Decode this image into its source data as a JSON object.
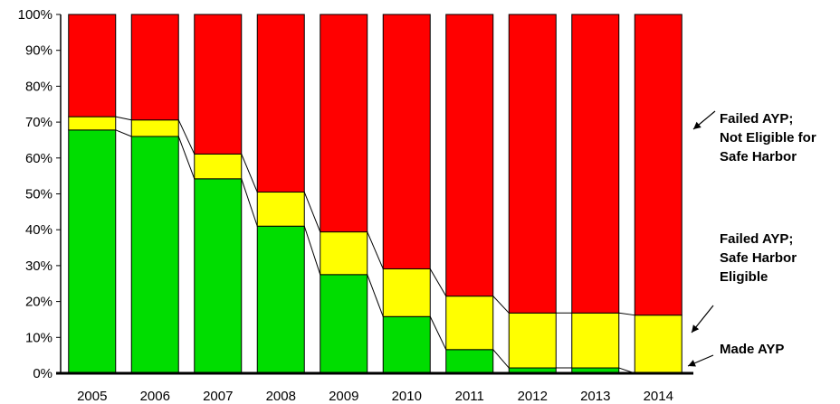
{
  "chart_data": {
    "type": "bar",
    "stacked": true,
    "percent_scale": true,
    "categories": [
      "2005",
      "2006",
      "2007",
      "2008",
      "2009",
      "2010",
      "2011",
      "2012",
      "2013",
      "2014"
    ],
    "series": [
      {
        "name": "Made AYP",
        "color": "#00dd00",
        "values": [
          67.8,
          66.0,
          54.2,
          41.0,
          27.5,
          15.8,
          6.6,
          1.5,
          1.5,
          0.0
        ]
      },
      {
        "name": "Failed AYP; Safe Harbor Eligible",
        "color": "#ffff00",
        "values": [
          3.7,
          4.6,
          6.9,
          9.5,
          11.9,
          13.3,
          14.9,
          15.3,
          15.3,
          16.2
        ]
      },
      {
        "name": "Failed AYP; Not Eligible for Safe Harbor",
        "color": "#ff0000",
        "values": [
          28.5,
          29.4,
          38.9,
          49.5,
          60.6,
          70.9,
          78.5,
          83.2,
          83.2,
          83.8
        ]
      }
    ],
    "legend_labels": [
      [
        "Failed AYP;",
        "Not Eligible for",
        "Safe Harbor"
      ],
      [
        "Failed AYP;",
        "Safe Harbor",
        "Eligible"
      ],
      [
        "Made AYP"
      ]
    ],
    "yticks": [
      "0%",
      "10%",
      "20%",
      "30%",
      "40%",
      "50%",
      "60%",
      "70%",
      "80%",
      "90%",
      "100%"
    ],
    "ylim": [
      0,
      100
    ],
    "grid": false,
    "legend_position": "right",
    "title": "",
    "xlabel": "",
    "ylabel": ""
  }
}
